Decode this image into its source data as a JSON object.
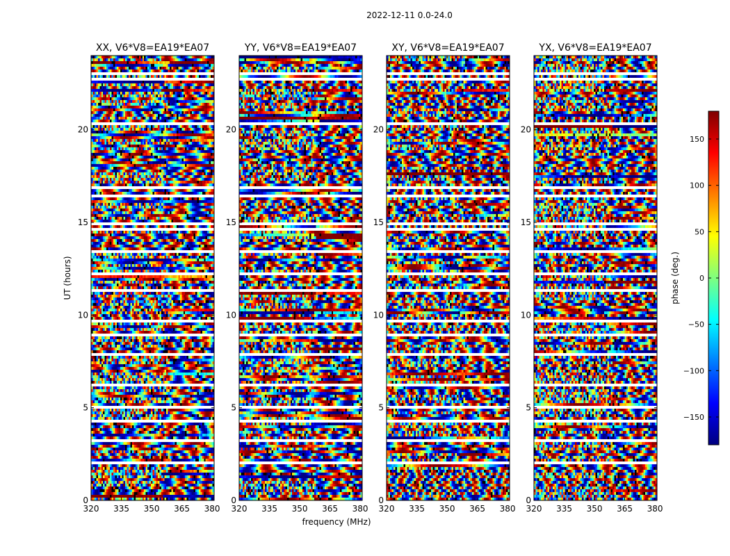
{
  "figure_title": "2022-12-11 0.0-24.0",
  "chart_data": {
    "type": "heatmap",
    "title": "2022-12-11 0.0-24.0",
    "xlabel": "frequency (MHz)",
    "ylabel": "UT (hours)",
    "xlim": [
      320,
      381
    ],
    "ylim": [
      0,
      24
    ],
    "x_ticks": [
      320,
      335,
      350,
      365,
      380
    ],
    "y_ticks": [
      0,
      5,
      10,
      15,
      20
    ],
    "panels": [
      {
        "title": "XX, V6*V8=EA19*EA07",
        "polarization": "XX"
      },
      {
        "title": "YY, V6*V8=EA19*EA07",
        "polarization": "YY"
      },
      {
        "title": "XY, V6*V8=EA19*EA07",
        "polarization": "XY"
      },
      {
        "title": "YX, V6*V8=EA19*EA07",
        "polarization": "YX"
      }
    ],
    "flagged_time_ranges_hours": [
      [
        1.9,
        2.05
      ],
      [
        3.2,
        3.35
      ],
      [
        4.2,
        4.3
      ],
      [
        5.0,
        5.08
      ],
      [
        6.2,
        6.3
      ],
      [
        7.0,
        7.08
      ],
      [
        7.8,
        7.95
      ],
      [
        8.2,
        8.3
      ],
      [
        8.9,
        9.05
      ],
      [
        9.6,
        9.7
      ],
      [
        10.3,
        10.4
      ],
      [
        11.3,
        11.4
      ],
      [
        12.2,
        12.3
      ],
      [
        13.3,
        13.45
      ],
      [
        14.6,
        14.7
      ],
      [
        14.9,
        15.0
      ],
      [
        16.3,
        16.5
      ],
      [
        16.8,
        17.0
      ],
      [
        20.3,
        20.4
      ],
      [
        22.6,
        22.8
      ],
      [
        23.0,
        23.1
      ]
    ],
    "colorbar": {
      "label": "phase (deg.)",
      "range": [
        -180,
        180
      ],
      "ticks": [
        150,
        100,
        50,
        0,
        -50,
        -100,
        -150
      ],
      "tick_labels": [
        "150",
        "100",
        "50",
        "0",
        "−50",
        "−100",
        "−150"
      ],
      "colormap": [
        "#00007f",
        "#0000ff",
        "#007fff",
        "#00ffff",
        "#7fff7f",
        "#ffff00",
        "#ff7f00",
        "#ff0000",
        "#7f0000"
      ]
    }
  }
}
